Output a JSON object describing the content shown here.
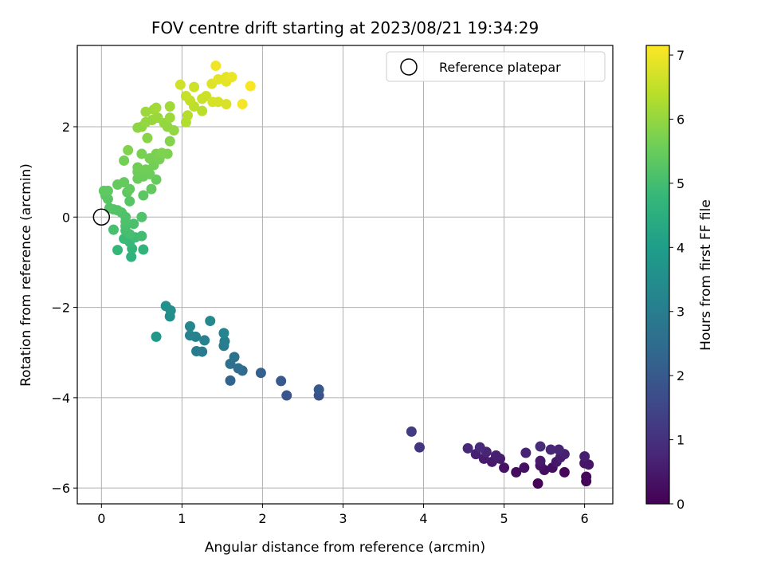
{
  "chart_data": {
    "type": "scatter",
    "title": "FOV centre drift starting at 2023/08/21 19:34:29",
    "xlabel": "Angular distance from reference (arcmin)",
    "ylabel": "Rotation from reference (arcmin)",
    "xlim": [
      -0.3,
      6.35
    ],
    "ylim": [
      -6.35,
      3.8
    ],
    "xticks": [
      0,
      1,
      2,
      3,
      4,
      5,
      6
    ],
    "yticks": [
      -6,
      -4,
      -2,
      0,
      2
    ],
    "grid": true,
    "legend": {
      "placement": "top-right",
      "entries": [
        {
          "label": "Reference platepar",
          "marker": "open-circle",
          "color": "#000000"
        }
      ]
    },
    "reference_point": {
      "x": 0,
      "y": 0
    },
    "colorbar": {
      "label": "Hours from first FF file",
      "range": [
        0,
        7.15
      ],
      "ticks": [
        0,
        1,
        2,
        3,
        4,
        5,
        6,
        7
      ],
      "colormap": "viridis"
    },
    "points": [
      {
        "x": 5.42,
        "y": -5.9,
        "c": 0.05
      },
      {
        "x": 6.02,
        "y": -5.85,
        "c": 0.1
      },
      {
        "x": 6.02,
        "y": -5.75,
        "c": 0.12
      },
      {
        "x": 5.75,
        "y": -5.65,
        "c": 0.15
      },
      {
        "x": 5.15,
        "y": -5.65,
        "c": 0.2
      },
      {
        "x": 5.5,
        "y": -5.6,
        "c": 0.25
      },
      {
        "x": 5.6,
        "y": -5.55,
        "c": 0.28
      },
      {
        "x": 5.25,
        "y": -5.55,
        "c": 0.3
      },
      {
        "x": 5.0,
        "y": -5.55,
        "c": 0.35
      },
      {
        "x": 5.45,
        "y": -5.5,
        "c": 0.38
      },
      {
        "x": 6.05,
        "y": -5.48,
        "c": 0.4
      },
      {
        "x": 6.0,
        "y": -5.45,
        "c": 0.42
      },
      {
        "x": 5.65,
        "y": -5.42,
        "c": 0.45
      },
      {
        "x": 4.85,
        "y": -5.42,
        "c": 0.48
      },
      {
        "x": 5.45,
        "y": -5.4,
        "c": 0.5
      },
      {
        "x": 4.95,
        "y": -5.35,
        "c": 0.52
      },
      {
        "x": 4.75,
        "y": -5.35,
        "c": 0.55
      },
      {
        "x": 5.7,
        "y": -5.32,
        "c": 0.58
      },
      {
        "x": 6.0,
        "y": -5.3,
        "c": 0.6
      },
      {
        "x": 4.9,
        "y": -5.28,
        "c": 0.62
      },
      {
        "x": 4.65,
        "y": -5.25,
        "c": 0.65
      },
      {
        "x": 5.75,
        "y": -5.25,
        "c": 0.68
      },
      {
        "x": 5.27,
        "y": -5.22,
        "c": 0.7
      },
      {
        "x": 4.78,
        "y": -5.2,
        "c": 0.72
      },
      {
        "x": 5.68,
        "y": -5.15,
        "c": 0.75
      },
      {
        "x": 5.58,
        "y": -5.15,
        "c": 0.78
      },
      {
        "x": 4.55,
        "y": -5.12,
        "c": 0.8
      },
      {
        "x": 4.7,
        "y": -5.1,
        "c": 0.85
      },
      {
        "x": 5.45,
        "y": -5.08,
        "c": 0.9
      },
      {
        "x": 3.95,
        "y": -5.1,
        "c": 1.1
      },
      {
        "x": 3.85,
        "y": -4.75,
        "c": 1.3
      },
      {
        "x": 2.7,
        "y": -3.95,
        "c": 1.8
      },
      {
        "x": 2.3,
        "y": -3.95,
        "c": 1.9
      },
      {
        "x": 2.7,
        "y": -3.82,
        "c": 1.95
      },
      {
        "x": 2.23,
        "y": -3.63,
        "c": 2.0
      },
      {
        "x": 1.98,
        "y": -3.45,
        "c": 2.2
      },
      {
        "x": 1.6,
        "y": -3.62,
        "c": 2.3
      },
      {
        "x": 1.75,
        "y": -3.4,
        "c": 2.45
      },
      {
        "x": 1.7,
        "y": -3.35,
        "c": 2.55
      },
      {
        "x": 1.6,
        "y": -3.25,
        "c": 2.65
      },
      {
        "x": 1.65,
        "y": -3.1,
        "c": 2.75
      },
      {
        "x": 1.25,
        "y": -2.98,
        "c": 2.9
      },
      {
        "x": 1.18,
        "y": -2.97,
        "c": 2.95
      },
      {
        "x": 1.52,
        "y": -2.85,
        "c": 3.0
      },
      {
        "x": 1.53,
        "y": -2.75,
        "c": 3.05
      },
      {
        "x": 1.28,
        "y": -2.73,
        "c": 3.1
      },
      {
        "x": 1.17,
        "y": -2.65,
        "c": 3.15
      },
      {
        "x": 1.1,
        "y": -2.62,
        "c": 3.2
      },
      {
        "x": 1.52,
        "y": -2.57,
        "c": 3.25
      },
      {
        "x": 1.1,
        "y": -2.42,
        "c": 3.3
      },
      {
        "x": 1.35,
        "y": -2.3,
        "c": 3.35
      },
      {
        "x": 0.85,
        "y": -2.2,
        "c": 3.5
      },
      {
        "x": 0.86,
        "y": -2.07,
        "c": 3.55
      },
      {
        "x": 0.8,
        "y": -1.97,
        "c": 3.6
      },
      {
        "x": 0.68,
        "y": -2.65,
        "c": 3.8
      },
      {
        "x": 0.37,
        "y": -0.88,
        "c": 4.6
      },
      {
        "x": 0.52,
        "y": -0.72,
        "c": 4.65
      },
      {
        "x": 0.38,
        "y": -0.7,
        "c": 4.7
      },
      {
        "x": 0.2,
        "y": -0.73,
        "c": 4.75
      },
      {
        "x": 0.35,
        "y": -0.55,
        "c": 4.8
      },
      {
        "x": 0.28,
        "y": -0.48,
        "c": 4.85
      },
      {
        "x": 0.42,
        "y": -0.45,
        "c": 4.9
      },
      {
        "x": 0.5,
        "y": -0.42,
        "c": 4.95
      },
      {
        "x": 0.35,
        "y": -0.38,
        "c": 5.0
      },
      {
        "x": 0.3,
        "y": -0.3,
        "c": 5.02
      },
      {
        "x": 0.15,
        "y": -0.28,
        "c": 5.04
      },
      {
        "x": 0.3,
        "y": -0.2,
        "c": 5.06
      },
      {
        "x": 0.4,
        "y": -0.15,
        "c": 5.08
      },
      {
        "x": 0.3,
        "y": -0.1,
        "c": 5.1
      },
      {
        "x": 0.3,
        "y": 0.0,
        "c": 5.12
      },
      {
        "x": 0.5,
        "y": 0.0,
        "c": 5.14
      },
      {
        "x": 0.25,
        "y": 0.1,
        "c": 5.16
      },
      {
        "x": 0.2,
        "y": 0.15,
        "c": 5.18
      },
      {
        "x": 0.15,
        "y": 0.17,
        "c": 5.2
      },
      {
        "x": 0.1,
        "y": 0.2,
        "c": 5.22
      },
      {
        "x": 0.35,
        "y": 0.35,
        "c": 5.24
      },
      {
        "x": 0.08,
        "y": 0.4,
        "c": 5.26
      },
      {
        "x": 0.05,
        "y": 0.48,
        "c": 5.28
      },
      {
        "x": 0.52,
        "y": 0.48,
        "c": 5.3
      },
      {
        "x": 0.32,
        "y": 0.55,
        "c": 5.32
      },
      {
        "x": 0.03,
        "y": 0.58,
        "c": 5.34
      },
      {
        "x": 0.08,
        "y": 0.58,
        "c": 5.36
      },
      {
        "x": 0.35,
        "y": 0.62,
        "c": 5.38
      },
      {
        "x": 0.62,
        "y": 0.62,
        "c": 5.4
      },
      {
        "x": 0.2,
        "y": 0.72,
        "c": 5.42
      },
      {
        "x": 0.28,
        "y": 0.77,
        "c": 5.44
      },
      {
        "x": 0.68,
        "y": 0.83,
        "c": 5.46
      },
      {
        "x": 0.45,
        "y": 0.85,
        "c": 5.48
      },
      {
        "x": 0.52,
        "y": 0.9,
        "c": 5.5
      },
      {
        "x": 0.6,
        "y": 0.95,
        "c": 5.52
      },
      {
        "x": 0.45,
        "y": 1.0,
        "c": 5.54
      },
      {
        "x": 0.55,
        "y": 1.05,
        "c": 5.56
      },
      {
        "x": 0.45,
        "y": 1.1,
        "c": 5.58
      },
      {
        "x": 0.65,
        "y": 1.15,
        "c": 5.6
      },
      {
        "x": 0.28,
        "y": 1.25,
        "c": 5.62
      },
      {
        "x": 0.72,
        "y": 1.28,
        "c": 5.64
      },
      {
        "x": 0.6,
        "y": 1.3,
        "c": 5.66
      },
      {
        "x": 0.5,
        "y": 1.4,
        "c": 5.68
      },
      {
        "x": 0.68,
        "y": 1.4,
        "c": 5.7
      },
      {
        "x": 0.82,
        "y": 1.4,
        "c": 5.72
      },
      {
        "x": 0.75,
        "y": 1.42,
        "c": 5.74
      },
      {
        "x": 0.33,
        "y": 1.48,
        "c": 5.76
      },
      {
        "x": 0.85,
        "y": 1.68,
        "c": 5.8
      },
      {
        "x": 0.57,
        "y": 1.75,
        "c": 5.85
      },
      {
        "x": 0.45,
        "y": 1.98,
        "c": 5.9
      },
      {
        "x": 0.5,
        "y": 2.0,
        "c": 5.92
      },
      {
        "x": 0.82,
        "y": 2.0,
        "c": 5.94
      },
      {
        "x": 0.9,
        "y": 1.92,
        "c": 5.96
      },
      {
        "x": 0.78,
        "y": 2.08,
        "c": 5.98
      },
      {
        "x": 0.55,
        "y": 2.1,
        "c": 6.0
      },
      {
        "x": 0.63,
        "y": 2.15,
        "c": 6.02
      },
      {
        "x": 0.7,
        "y": 2.2,
        "c": 6.04
      },
      {
        "x": 0.85,
        "y": 2.2,
        "c": 6.06
      },
      {
        "x": 0.55,
        "y": 2.33,
        "c": 6.08
      },
      {
        "x": 0.65,
        "y": 2.38,
        "c": 6.1
      },
      {
        "x": 0.85,
        "y": 2.45,
        "c": 6.12
      },
      {
        "x": 0.68,
        "y": 2.42,
        "c": 6.14
      },
      {
        "x": 1.05,
        "y": 2.1,
        "c": 6.3
      },
      {
        "x": 1.07,
        "y": 2.25,
        "c": 6.35
      },
      {
        "x": 1.25,
        "y": 2.35,
        "c": 6.4
      },
      {
        "x": 1.15,
        "y": 2.45,
        "c": 6.45
      },
      {
        "x": 1.1,
        "y": 2.58,
        "c": 6.5
      },
      {
        "x": 1.05,
        "y": 2.68,
        "c": 6.55
      },
      {
        "x": 1.25,
        "y": 2.62,
        "c": 6.58
      },
      {
        "x": 1.3,
        "y": 2.68,
        "c": 6.6
      },
      {
        "x": 1.15,
        "y": 2.88,
        "c": 6.62
      },
      {
        "x": 0.98,
        "y": 2.93,
        "c": 6.65
      },
      {
        "x": 1.38,
        "y": 2.55,
        "c": 6.7
      },
      {
        "x": 1.45,
        "y": 2.55,
        "c": 6.72
      },
      {
        "x": 1.55,
        "y": 2.5,
        "c": 6.75
      },
      {
        "x": 1.37,
        "y": 2.95,
        "c": 6.8
      },
      {
        "x": 1.45,
        "y": 3.05,
        "c": 6.85
      },
      {
        "x": 1.55,
        "y": 3.0,
        "c": 6.88
      },
      {
        "x": 1.55,
        "y": 3.1,
        "c": 6.9
      },
      {
        "x": 1.62,
        "y": 3.1,
        "c": 6.95
      },
      {
        "x": 1.42,
        "y": 3.35,
        "c": 7.0
      },
      {
        "x": 1.75,
        "y": 2.5,
        "c": 7.05
      },
      {
        "x": 1.85,
        "y": 2.9,
        "c": 7.1
      }
    ]
  }
}
